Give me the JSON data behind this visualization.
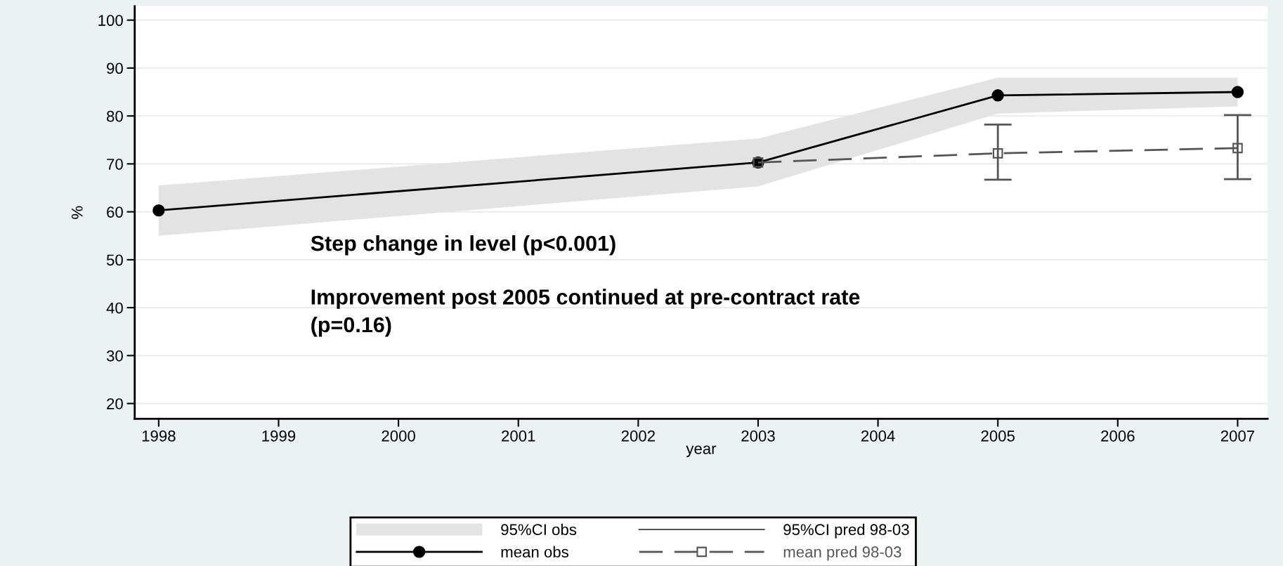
{
  "chart_data": {
    "type": "line",
    "xlabel": "year",
    "ylabel": "%",
    "x": [
      1998,
      2003,
      2005,
      2007
    ],
    "series": [
      {
        "name": "mean obs",
        "color": "#000000",
        "marker": "circle",
        "line_style": "solid",
        "values": [
          60.3,
          70.3,
          84.3,
          85.0
        ],
        "lower": [
          55,
          65.3,
          80.5,
          82
        ],
        "upper": [
          65.5,
          75.3,
          88,
          88
        ]
      },
      {
        "name": "mean pred 98-03",
        "color": "#555555",
        "marker": "square",
        "line_style": "dashed",
        "x": [
          2003,
          2005,
          2007
        ],
        "values": [
          70.3,
          72.2,
          73.3
        ],
        "errors": [
          null,
          [
            66.7,
            78.2
          ],
          [
            66.8,
            80.2
          ]
        ]
      }
    ],
    "xlim": [
      1997.8,
      2007.25
    ],
    "xticks": [
      1998,
      1999,
      2000,
      2001,
      2002,
      2003,
      2004,
      2005,
      2006,
      2007
    ],
    "ylim": [
      16.8,
      102.9
    ],
    "yticks": [
      20,
      30,
      40,
      50,
      60,
      70,
      80,
      90,
      100
    ],
    "grid": "y",
    "legend": "bottom",
    "annotations": [
      "Step change in level (p<0.001)",
      "Improvement post 2005 continued at pre-contract rate\n(p=0.16)",
      "95%CI obs",
      "95%CI pred 98-03"
    ]
  }
}
